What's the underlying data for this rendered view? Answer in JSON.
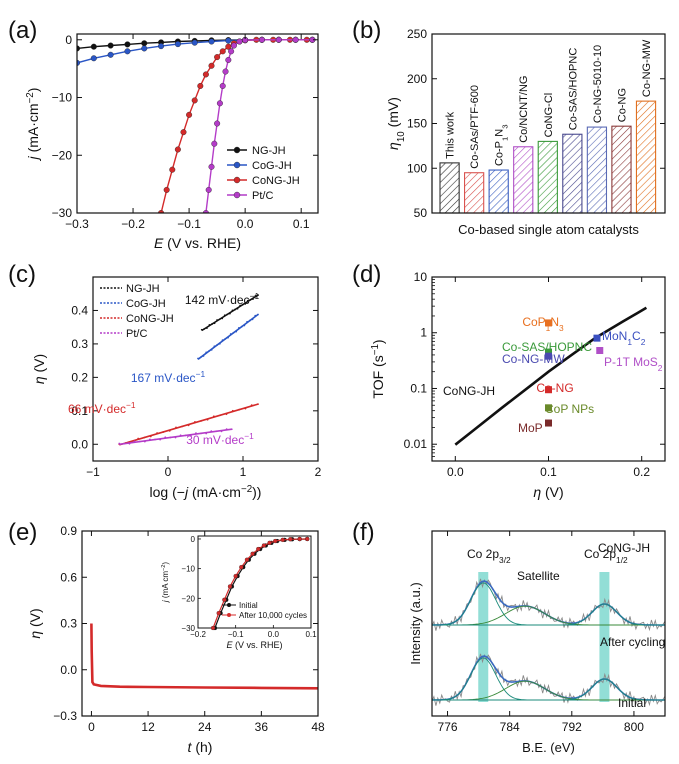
{
  "chart_data": [
    {
      "type": "line",
      "panel_label": "(a)",
      "xlabel_italic": "E",
      "xlabel_rest": " (V vs. RHE)",
      "ylabel_italic": "j",
      "ylabel_rest": " (mA·cm",
      "ylabel_sup": "−2",
      "ylabel_close": ")",
      "xlim": [
        -0.3,
        0.13
      ],
      "ylim": [
        -30,
        1
      ],
      "xticks": [
        -0.3,
        -0.2,
        -0.1,
        0.0,
        0.1
      ],
      "xtick_labels": [
        "−0.3",
        "−0.2",
        "−0.1",
        "0.0",
        "0.1"
      ],
      "yticks": [
        0,
        -10,
        -20,
        -30
      ],
      "ytick_labels": [
        "0",
        "−10",
        "−20",
        "−30"
      ],
      "legend": [
        "NG-JH",
        "CoG-JH",
        "CoNG-JH",
        "Pt/C"
      ],
      "series": [
        {
          "name": "NG-JH",
          "color": "#111111",
          "x": [
            -0.3,
            -0.27,
            -0.24,
            -0.21,
            -0.18,
            -0.15,
            -0.12,
            -0.09,
            -0.06,
            -0.03,
            0.0,
            0.03,
            0.06,
            0.09,
            0.12
          ],
          "y": [
            -1.5,
            -1.2,
            -1.0,
            -0.8,
            -0.6,
            -0.45,
            -0.3,
            -0.2,
            -0.1,
            -0.05,
            -0.02,
            0,
            0,
            0,
            0
          ]
        },
        {
          "name": "CoG-JH",
          "color": "#2a56c6",
          "x": [
            -0.3,
            -0.27,
            -0.24,
            -0.21,
            -0.18,
            -0.15,
            -0.12,
            -0.09,
            -0.06,
            -0.03,
            0.0,
            0.03,
            0.06,
            0.09,
            0.12
          ],
          "y": [
            -4.0,
            -3.2,
            -2.6,
            -2.0,
            -1.5,
            -1.1,
            -0.75,
            -0.5,
            -0.3,
            -0.15,
            -0.05,
            0,
            0,
            0,
            0
          ]
        },
        {
          "name": "CoNG-JH",
          "color": "#d42a2a",
          "x": [
            -0.15,
            -0.14,
            -0.13,
            -0.12,
            -0.11,
            -0.1,
            -0.09,
            -0.08,
            -0.07,
            -0.06,
            -0.05,
            -0.04,
            -0.03,
            -0.02,
            -0.01,
            0.0,
            0.02,
            0.05,
            0.08,
            0.11
          ],
          "y": [
            -30,
            -26,
            -22.5,
            -19,
            -16,
            -13,
            -10.5,
            -8,
            -6,
            -4.5,
            -3,
            -2,
            -1.2,
            -0.6,
            -0.3,
            -0.1,
            0,
            0,
            0,
            0
          ]
        },
        {
          "name": "Pt/C",
          "color": "#b43cc8",
          "x": [
            -0.07,
            -0.065,
            -0.06,
            -0.055,
            -0.05,
            -0.045,
            -0.04,
            -0.035,
            -0.03,
            -0.025,
            -0.02,
            -0.01,
            0.0,
            0.03,
            0.06,
            0.09,
            0.12
          ],
          "y": [
            -30,
            -26,
            -22,
            -18,
            -14.5,
            -11,
            -8,
            -5.5,
            -3.5,
            -2,
            -1,
            -0.3,
            -0.05,
            0,
            0,
            0,
            0
          ]
        }
      ]
    },
    {
      "type": "bar",
      "panel_label": "(b)",
      "xlabel": "Co-based single atom catalysts",
      "ylabel_italic": "η",
      "ylabel_sub": "10",
      "ylabel_rest": " (mV)",
      "ylim": [
        50,
        250
      ],
      "yticks": [
        50,
        100,
        150,
        200,
        250
      ],
      "categories": [
        "This work",
        "Co-SAs/PTF-600",
        "Co-P",
        "Co/NCNT/NG",
        "CoNG-Cl",
        "Co-SAS/HOPNC",
        "Co-NG-5010-10",
        "Co-NG",
        "Co-NG-MW"
      ],
      "category_p_sub": "1",
      "category_n_sub": "3",
      "values": [
        106,
        95,
        98,
        124,
        130,
        138,
        146,
        147,
        175
      ],
      "colors": [
        "#333333",
        "#d9534f",
        "#3b5fc0",
        "#b04fc7",
        "#3a9a3a",
        "#4a4a8f",
        "#5a6ab5",
        "#8b3a3a",
        "#e07020"
      ]
    },
    {
      "type": "line",
      "panel_label": "(c)",
      "xlabel_pre": "log (−",
      "xlabel_italic": "j",
      "xlabel_rest": " (mA·cm",
      "xlabel_sup": "−2",
      "xlabel_close": "))",
      "ylabel_italic": "η",
      "ylabel_rest": " (V)",
      "xlim": [
        -1,
        2
      ],
      "ylim": [
        -0.05,
        0.5
      ],
      "xticks": [
        -1,
        0,
        1,
        2
      ],
      "xtick_labels": [
        "−1",
        "0",
        "1",
        "2"
      ],
      "yticks": [
        0.0,
        0.1,
        0.2,
        0.3,
        0.4
      ],
      "ytick_labels": [
        "0.0",
        "0.1",
        "0.2",
        "0.3",
        "0.4"
      ],
      "legend": [
        "NG-JH",
        "CoG-JH",
        "CoNG-JH",
        "Pt/C"
      ],
      "series": [
        {
          "name": "NG-JH",
          "color": "#111111",
          "x": [
            0.45,
            1.2
          ],
          "y": [
            0.34,
            0.446
          ]
        },
        {
          "name": "CoG-JH",
          "color": "#2a56c6",
          "x": [
            0.4,
            1.2
          ],
          "y": [
            0.254,
            0.388
          ]
        },
        {
          "name": "CoNG-JH",
          "color": "#d42a2a",
          "x": [
            -0.65,
            1.2
          ],
          "y": [
            -0.002,
            0.12
          ]
        },
        {
          "name": "Pt/C",
          "color": "#b43cc8",
          "x": [
            -0.65,
            0.85
          ],
          "y": [
            0.0,
            0.045
          ]
        }
      ],
      "annotations": [
        {
          "text": "142 mV·dec",
          "sup": "−1",
          "color": "#111111"
        },
        {
          "text": "167 mV·dec",
          "sup": "−1",
          "color": "#2a56c6"
        },
        {
          "text": "66 mV·dec",
          "sup": "−1",
          "color": "#d42a2a"
        },
        {
          "text": "30 mV·dec",
          "sup": "−1",
          "color": "#b43cc8"
        }
      ]
    },
    {
      "type": "scatter",
      "panel_label": "(d)",
      "xlabel_italic": "η",
      "xlabel_rest": " (V)",
      "ylabel": "TOF (s",
      "ylabel_sup": "−1",
      "ylabel_close": ")",
      "yscale": "log",
      "xlim": [
        -0.025,
        0.225
      ],
      "ylim": [
        0.005,
        10
      ],
      "xticks": [
        0.0,
        0.1,
        0.2
      ],
      "xtick_labels": [
        "0.0",
        "0.1",
        "0.2"
      ],
      "yticks": [
        0.01,
        0.1,
        1,
        10
      ],
      "ytick_labels": [
        "0.01",
        "0.1",
        "1",
        "10"
      ],
      "curve": {
        "name": "CoNG-JH",
        "color": "#111111",
        "x": [
          0.0,
          0.02,
          0.05,
          0.08,
          0.1,
          0.12,
          0.15,
          0.18,
          0.205
        ],
        "y": [
          0.0098,
          0.018,
          0.045,
          0.11,
          0.2,
          0.35,
          0.8,
          1.6,
          2.8
        ]
      },
      "points": [
        {
          "label": "CoP",
          "sub": "1",
          "label2": "N",
          "sub2": "3",
          "x": 0.1,
          "y": 1.5,
          "color": "#e87020"
        },
        {
          "label": "Co-SAS/HOPNC",
          "x": 0.1,
          "y": 0.45,
          "color": "#3a9a3a"
        },
        {
          "label": "Co-NG-MW",
          "x": 0.1,
          "y": 0.38,
          "color": "#4a4ab0"
        },
        {
          "label": "MoN",
          "sub": "1",
          "label2": "C",
          "sub2": "2",
          "x": 0.152,
          "y": 0.8,
          "color": "#3a4fc0"
        },
        {
          "label": "P-1T MoS",
          "sub": "2",
          "x": 0.155,
          "y": 0.48,
          "color": "#b04fc7"
        },
        {
          "label": "Co-NG",
          "x": 0.1,
          "y": 0.095,
          "color": "#d42a2a"
        },
        {
          "label": "CoP NPs",
          "x": 0.1,
          "y": 0.045,
          "color": "#6a8a2a"
        },
        {
          "label": "MoP",
          "x": 0.1,
          "y": 0.024,
          "color": "#7a2a2a"
        }
      ]
    },
    {
      "type": "line",
      "panel_label": "(e)",
      "xlabel_italic": "t",
      "xlabel_rest": " (h)",
      "ylabel_italic": "η",
      "ylabel_rest": " (V)",
      "xlim": [
        -2,
        48
      ],
      "ylim": [
        -0.3,
        0.9
      ],
      "xticks": [
        0,
        12,
        24,
        36,
        48
      ],
      "xtick_labels": [
        "0",
        "12",
        "24",
        "36",
        "48"
      ],
      "yticks": [
        -0.3,
        0.0,
        0.3,
        0.6,
        0.9
      ],
      "ytick_labels": [
        "−0.3",
        "0.0",
        "0.3",
        "0.6",
        "0.9"
      ],
      "series": [
        {
          "name": "stability",
          "color": "#d42a2a",
          "x": [
            0,
            0.05,
            0.2,
            0.5,
            2,
            6,
            12,
            24,
            36,
            48
          ],
          "y": [
            0.3,
            0.12,
            -0.08,
            -0.095,
            -0.105,
            -0.11,
            -0.112,
            -0.115,
            -0.118,
            -0.12
          ]
        }
      ],
      "inset": {
        "xlabel_italic": "E",
        "xlabel_rest": " (V vs. RHE)",
        "ylabel_italic": "j",
        "ylabel_rest": " (mA cm",
        "ylabel_sup": "−2",
        "ylabel_close": ")",
        "xlim": [
          -0.2,
          0.1
        ],
        "ylim": [
          -30,
          1
        ],
        "xticks": [
          -0.2,
          -0.1,
          0.0,
          0.1
        ],
        "xtick_labels": [
          "−0.2",
          "−0.1",
          "0.0",
          "0.1"
        ],
        "yticks": [
          0,
          -10,
          -20,
          -30
        ],
        "ytick_labels": [
          "0",
          "−10",
          "−20",
          "−30"
        ],
        "legend": [
          "Initial",
          "After 10,000 cycles"
        ],
        "series": [
          {
            "name": "Initial",
            "color": "#111111",
            "x": [
              -0.155,
              -0.14,
              -0.125,
              -0.11,
              -0.095,
              -0.08,
              -0.065,
              -0.05,
              -0.035,
              -0.02,
              -0.005,
              0.01,
              0.03,
              0.05,
              0.07,
              0.09
            ],
            "y": [
              -30,
              -25,
              -20.5,
              -16,
              -12.5,
              -9.5,
              -7,
              -5,
              -3.4,
              -2.2,
              -1.3,
              -0.7,
              -0.3,
              -0.1,
              -0.03,
              0
            ]
          },
          {
            "name": "After 10,000 cycles",
            "color": "#d42a2a",
            "x": [
              -0.16,
              -0.145,
              -0.13,
              -0.115,
              -0.1,
              -0.085,
              -0.07,
              -0.055,
              -0.04,
              -0.025,
              -0.01,
              0.005,
              0.025,
              0.045,
              0.07,
              0.09
            ],
            "y": [
              -30,
              -25,
              -20.5,
              -16,
              -12.5,
              -9.5,
              -7,
              -5,
              -3.4,
              -2.2,
              -1.3,
              -0.7,
              -0.3,
              -0.1,
              -0.03,
              0
            ]
          }
        ]
      }
    },
    {
      "type": "line",
      "panel_label": "(f)",
      "xlabel": "B.E. (eV)",
      "ylabel": "Intensity (a.u.)",
      "xlim": [
        774,
        804
      ],
      "xticks": [
        776,
        784,
        792,
        800
      ],
      "xtick_labels": [
        "776",
        "784",
        "792",
        "800"
      ],
      "sample_label": "CoNG-JH",
      "peak_labels": [
        {
          "text": "Co 2p",
          "sub": "3/2"
        },
        {
          "text": "Satellite"
        },
        {
          "text": "Co 2p",
          "sub": "1/2"
        }
      ],
      "spectra_labels": [
        "After cycling",
        "Initial"
      ],
      "highlight_bands_ev": [
        780.6,
        796.2
      ],
      "highlight_color": "#7fd8cf"
    }
  ]
}
